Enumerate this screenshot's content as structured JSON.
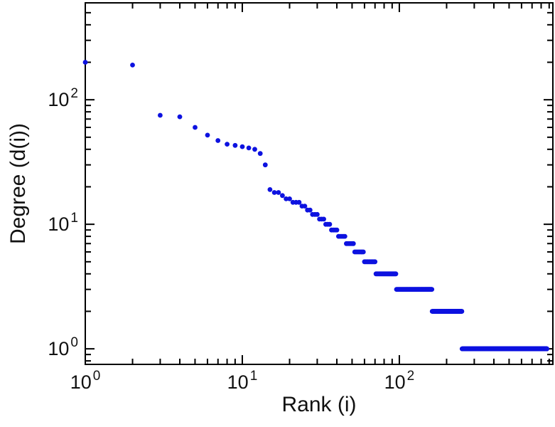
{
  "figure": {
    "background": "#ffffff",
    "frame_color": "#000000",
    "tick_color": "#000000",
    "text_color": "#111111"
  },
  "chart_data": {
    "type": "scatter",
    "xlabel": "Rank (i)",
    "ylabel": "Degree (d(i))",
    "xscale": "log",
    "yscale": "log",
    "xlim": [
      1,
      950
    ],
    "ylim": [
      0.75,
      600
    ],
    "grid": false,
    "legend": "none",
    "tick_label_base": "10",
    "x_major_tick_exponents": [
      0,
      1,
      2
    ],
    "y_major_tick_exponents": [
      0,
      1,
      2
    ],
    "marker": {
      "shape": "circle",
      "color": "#0d12e0",
      "radius": 3.4
    },
    "series_name": "degree-vs-rank",
    "points_rle": [
      {
        "degree": 200,
        "count": 1
      },
      {
        "degree": 190,
        "count": 1
      },
      {
        "degree": 75,
        "count": 1
      },
      {
        "degree": 73,
        "count": 1
      },
      {
        "degree": 60,
        "count": 1
      },
      {
        "degree": 52,
        "count": 1
      },
      {
        "degree": 47,
        "count": 1
      },
      {
        "degree": 44,
        "count": 1
      },
      {
        "degree": 43,
        "count": 1
      },
      {
        "degree": 42,
        "count": 1
      },
      {
        "degree": 41,
        "count": 1
      },
      {
        "degree": 40,
        "count": 1
      },
      {
        "degree": 37,
        "count": 1
      },
      {
        "degree": 30,
        "count": 1
      },
      {
        "degree": 19,
        "count": 1
      },
      {
        "degree": 18,
        "count": 2
      },
      {
        "degree": 17,
        "count": 1
      },
      {
        "degree": 16,
        "count": 2
      },
      {
        "degree": 15,
        "count": 3
      },
      {
        "degree": 14,
        "count": 2
      },
      {
        "degree": 13,
        "count": 2
      },
      {
        "degree": 12,
        "count": 3
      },
      {
        "degree": 11,
        "count": 3
      },
      {
        "degree": 10,
        "count": 3
      },
      {
        "degree": 9,
        "count": 4
      },
      {
        "degree": 8,
        "count": 5
      },
      {
        "degree": 7,
        "count": 6
      },
      {
        "degree": 6,
        "count": 8
      },
      {
        "degree": 5,
        "count": 11
      },
      {
        "degree": 4,
        "count": 25
      },
      {
        "degree": 3,
        "count": 66
      },
      {
        "degree": 2,
        "count": 89
      },
      {
        "degree": 1,
        "count": 620
      }
    ]
  }
}
